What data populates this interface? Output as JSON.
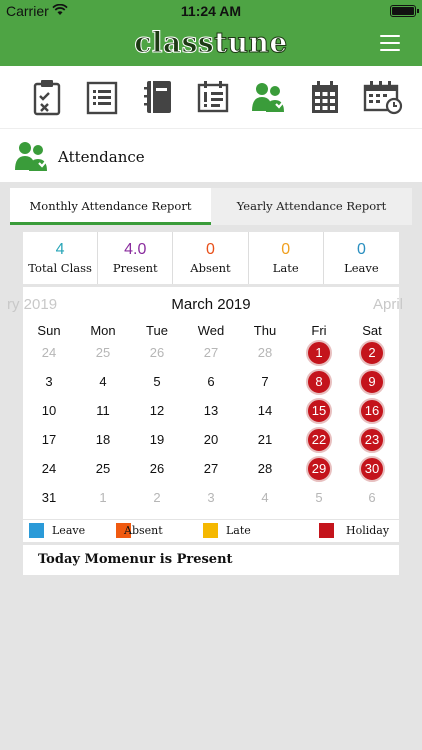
{
  "status_bar": {
    "carrier": "Carrier",
    "time": "11:24 AM"
  },
  "app": {
    "logo_part1": "class",
    "logo_part2": "tune"
  },
  "toolbar": {
    "icons": [
      "checklist-icon",
      "list-document-icon",
      "notebook-icon",
      "notice-board-icon",
      "attendance-icon",
      "calendar-grid-icon",
      "routine-calendar-icon"
    ],
    "active_icon": "attendance-icon"
  },
  "page": {
    "title": "Attendance"
  },
  "tabs": [
    {
      "label": "Monthly Attendance Report",
      "active": true
    },
    {
      "label": "Yearly Attendance Report",
      "active": false
    }
  ],
  "stats": [
    {
      "value": "4",
      "label": "Total Class",
      "color": "#2aa6b8"
    },
    {
      "value": "4.0",
      "label": "Present",
      "color": "#8a2d9e"
    },
    {
      "value": "0",
      "label": "Absent",
      "color": "#e8501a"
    },
    {
      "value": "0",
      "label": "Late",
      "color": "#f0a020"
    },
    {
      "value": "0",
      "label": "Leave",
      "color": "#2a8fc0"
    }
  ],
  "calendar": {
    "prev_month": "ry 2019",
    "current_month": "March 2019",
    "next_month": "April",
    "weekdays": [
      "Sun",
      "Mon",
      "Tue",
      "Wed",
      "Thu",
      "Fri",
      "Sat"
    ],
    "weeks": [
      [
        {
          "d": "24",
          "o": true
        },
        {
          "d": "25",
          "o": true
        },
        {
          "d": "26",
          "o": true
        },
        {
          "d": "27",
          "o": true
        },
        {
          "d": "28",
          "o": true
        },
        {
          "d": "1",
          "h": true
        },
        {
          "d": "2",
          "h": true
        }
      ],
      [
        {
          "d": "3"
        },
        {
          "d": "4"
        },
        {
          "d": "5"
        },
        {
          "d": "6"
        },
        {
          "d": "7"
        },
        {
          "d": "8",
          "h": true
        },
        {
          "d": "9",
          "h": true
        }
      ],
      [
        {
          "d": "10"
        },
        {
          "d": "11"
        },
        {
          "d": "12"
        },
        {
          "d": "13"
        },
        {
          "d": "14"
        },
        {
          "d": "15",
          "h": true
        },
        {
          "d": "16",
          "h": true
        }
      ],
      [
        {
          "d": "17"
        },
        {
          "d": "18"
        },
        {
          "d": "19"
        },
        {
          "d": "20"
        },
        {
          "d": "21"
        },
        {
          "d": "22",
          "h": true
        },
        {
          "d": "23",
          "h": true
        }
      ],
      [
        {
          "d": "24"
        },
        {
          "d": "25"
        },
        {
          "d": "26"
        },
        {
          "d": "27"
        },
        {
          "d": "28"
        },
        {
          "d": "29",
          "h": true
        },
        {
          "d": "30",
          "h": true
        }
      ],
      [
        {
          "d": "31"
        },
        {
          "d": "1",
          "o": true
        },
        {
          "d": "2",
          "o": true
        },
        {
          "d": "3",
          "o": true
        },
        {
          "d": "4",
          "o": true
        },
        {
          "d": "5",
          "o": true
        },
        {
          "d": "6",
          "o": true
        }
      ]
    ]
  },
  "legend": [
    {
      "label": "Leave",
      "color": "#2a9ad8"
    },
    {
      "label": "Absent",
      "color": "#f05a10"
    },
    {
      "label": "Late",
      "color": "#f5b800"
    },
    {
      "label": "Holiday",
      "color": "#c4141c"
    }
  ],
  "today_message": "Today Momenur is Present"
}
